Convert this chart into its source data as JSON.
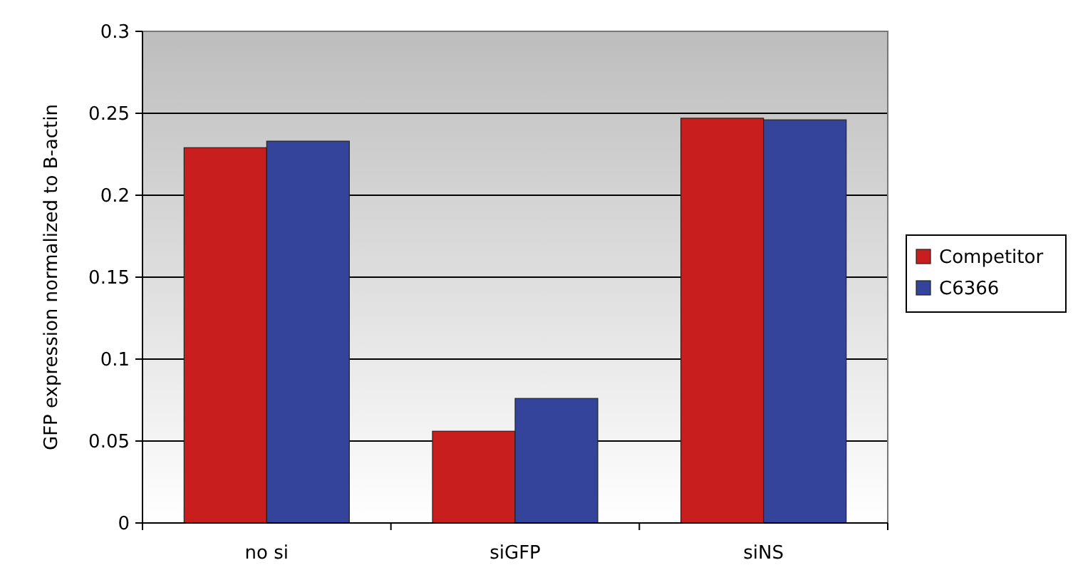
{
  "chart_data": {
    "type": "bar",
    "ylabel": "GFP expression normalized to B-actin",
    "categories": [
      "no si",
      "siGFP",
      "siNS"
    ],
    "series": [
      {
        "name": "Competitor",
        "color": "#c81e1e",
        "values": [
          0.229,
          0.056,
          0.247
        ]
      },
      {
        "name": "C6366",
        "color": "#33449a",
        "values": [
          0.233,
          0.076,
          0.246
        ]
      }
    ],
    "ylim": [
      0,
      0.3
    ],
    "yticks": [
      0,
      0.05,
      0.1,
      0.15,
      0.2,
      0.25,
      0.3
    ],
    "grid": "y",
    "legend": "right"
  }
}
